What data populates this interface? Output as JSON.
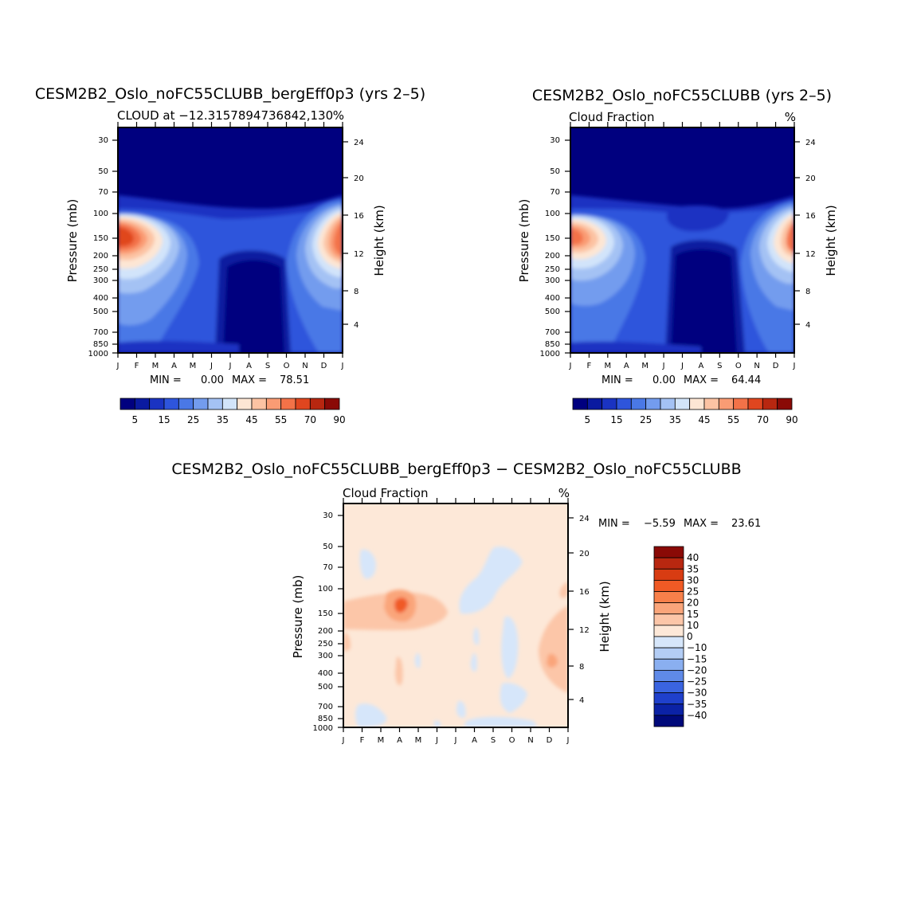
{
  "chart_data": [
    {
      "type": "heatmap",
      "id": "p1",
      "title": "CESM2B2_Oslo_noFC55CLUBB_bergEff0p3 (yrs 2–5)",
      "subtitle_left": "CLOUD at −12.3157894736842,130",
      "subtitle_right": "%",
      "ylabel": "Pressure (mb)",
      "ylabel_right": "Height (km)",
      "months": [
        "J",
        "F",
        "M",
        "A",
        "M",
        "J",
        "J",
        "A",
        "S",
        "O",
        "N",
        "D",
        "J"
      ],
      "pressure_ticks": [
        "30",
        "50",
        "70",
        "100",
        "150",
        "200",
        "250",
        "300",
        "400",
        "500",
        "700",
        "850",
        "1000"
      ],
      "height_ticks": [
        "24",
        "20",
        "16",
        "12",
        "8",
        "4"
      ],
      "min_label": "MIN =",
      "min_value": "0.00",
      "max_label": "MAX =",
      "max_value": "78.51",
      "colorbar_labels": [
        "5",
        "15",
        "25",
        "35",
        "45",
        "55",
        "70",
        "90"
      ]
    },
    {
      "type": "heatmap",
      "id": "p2",
      "title": "CESM2B2_Oslo_noFC55CLUBB (yrs 2–5)",
      "subtitle_left": "Cloud Fraction",
      "subtitle_right": "%",
      "ylabel": "Pressure (mb)",
      "ylabel_right": "Height (km)",
      "months": [
        "J",
        "F",
        "M",
        "A",
        "M",
        "J",
        "J",
        "A",
        "S",
        "O",
        "N",
        "D",
        "J"
      ],
      "pressure_ticks": [
        "30",
        "50",
        "70",
        "100",
        "150",
        "200",
        "250",
        "300",
        "400",
        "500",
        "700",
        "850",
        "1000"
      ],
      "height_ticks": [
        "24",
        "20",
        "16",
        "12",
        "8",
        "4"
      ],
      "min_label": "MIN =",
      "min_value": "0.00",
      "max_label": "MAX =",
      "max_value": "64.44",
      "colorbar_labels": [
        "5",
        "15",
        "25",
        "35",
        "45",
        "55",
        "70",
        "90"
      ]
    },
    {
      "type": "heatmap",
      "id": "p3",
      "title": "CESM2B2_Oslo_noFC55CLUBB_bergEff0p3 − CESM2B2_Oslo_noFC55CLUBB",
      "subtitle_left": "Cloud Fraction",
      "subtitle_right": "%",
      "ylabel": "Pressure (mb)",
      "ylabel_right": "Height (km)",
      "months": [
        "J",
        "F",
        "M",
        "A",
        "M",
        "J",
        "J",
        "A",
        "S",
        "O",
        "N",
        "D",
        "J"
      ],
      "pressure_ticks": [
        "30",
        "50",
        "70",
        "100",
        "150",
        "200",
        "250",
        "300",
        "400",
        "500",
        "700",
        "850",
        "1000"
      ],
      "height_ticks": [
        "24",
        "20",
        "16",
        "12",
        "8",
        "4"
      ],
      "min_label": "MIN =",
      "min_value": "−5.59",
      "max_label": "MAX =",
      "max_value": "23.61",
      "colorbar_labels": [
        "40",
        "35",
        "30",
        "25",
        "20",
        "15",
        "10",
        "0",
        "−10",
        "−15",
        "−20",
        "−25",
        "−30",
        "−35",
        "−40"
      ]
    }
  ],
  "colors": {
    "abs_scale": [
      "#00007f",
      "#0a1aa0",
      "#1a33c2",
      "#2e55dc",
      "#4a78e6",
      "#739cee",
      "#a4c2f4",
      "#d2e4fa",
      "#fde6d4",
      "#fcc3a3",
      "#fa9c74",
      "#f37248",
      "#e0461f",
      "#b82710",
      "#8a0a06"
    ],
    "diff_scale": [
      "#8a0a06",
      "#b82710",
      "#d83c12",
      "#f05a25",
      "#f8804a",
      "#faa57a",
      "#fcc6a8",
      "#fde8d8",
      "#d6e6fa",
      "#b3cdf5",
      "#8aaff0",
      "#5f8ae8",
      "#3a64e0",
      "#1f40cc",
      "#0b22a6",
      "#00097a"
    ]
  }
}
